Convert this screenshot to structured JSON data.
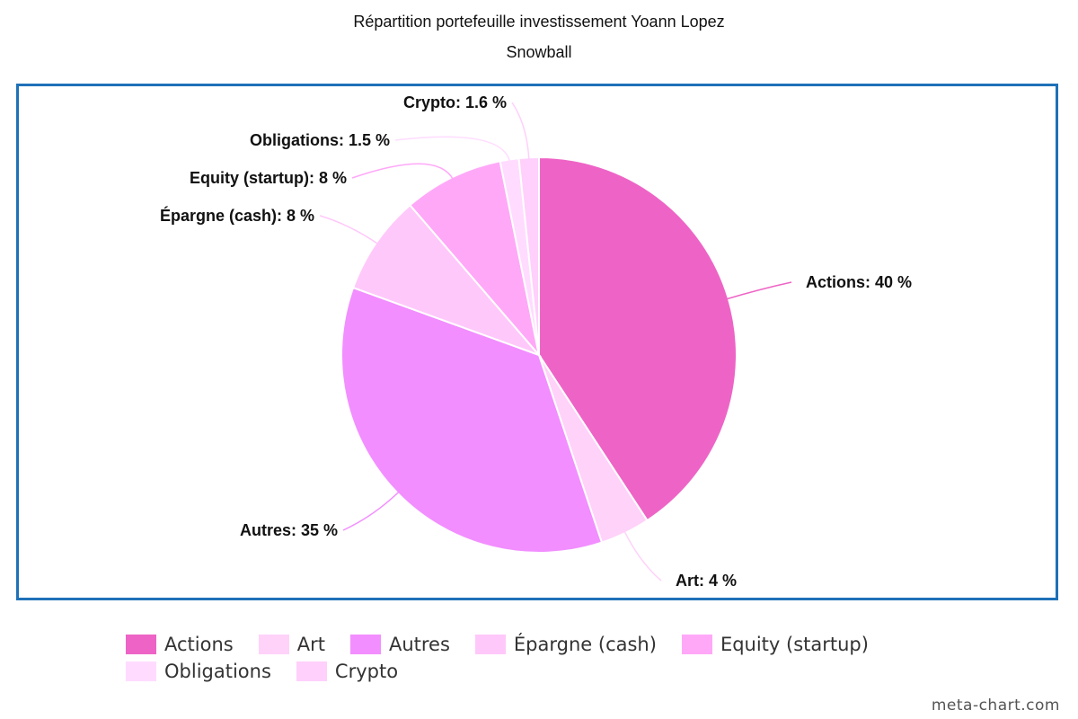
{
  "chart_data": {
    "type": "pie",
    "title": "Répartition portefeuille investissement Yoann Lopez",
    "subtitle": "Snowball",
    "legend_position": "bottom",
    "slices": [
      {
        "label": "Actions",
        "value": 40,
        "display": "40 %",
        "color": "#ee64c6"
      },
      {
        "label": "Art",
        "value": 4,
        "display": "4 %",
        "color": "#ffd2fa"
      },
      {
        "label": "Autres",
        "value": 35,
        "display": "35 %",
        "color": "#f28eff"
      },
      {
        "label": "Épargne (cash)",
        "value": 8,
        "display": "8 %",
        "color": "#ffc8fa"
      },
      {
        "label": "Equity (startup)",
        "value": 8,
        "display": "8 %",
        "color": "#ffa8f8"
      },
      {
        "label": "Obligations",
        "value": 1.5,
        "display": "1.5 %",
        "color": "#ffdcff"
      },
      {
        "label": "Crypto",
        "value": 1.6,
        "display": "1.6 %",
        "color": "#ffd0fb"
      }
    ]
  },
  "watermark": "meta-chart.com"
}
